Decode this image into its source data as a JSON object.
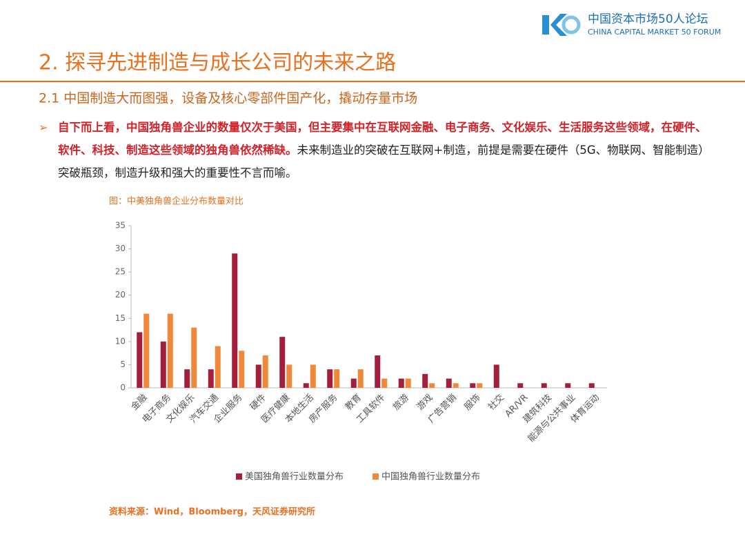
{
  "header": {
    "org_name": "中国资本市场50人论坛",
    "org_name_en": "CHINA CAPITAL MARKET 50 FORUM"
  },
  "title": "2. 探寻先进制造与成长公司的未来之路",
  "subtitle": "2.1 中国制造大而图强，设备及核心零部件国产化，撬动存量市场",
  "bullet": {
    "bold": "自下而上看，中国独角兽企业的数量仅次于美国，但主要集中在互联网金融、电子商务、文化娱乐、生活服务这些领域，在硬件、软件、科技、制造这些领域的独角兽依然稀缺。",
    "rest": "未来制造业的突破在互联网+制造，前提是需要在硬件（5G、物联网、智能制造）突破瓶颈，制造升级和强大的重要性不言而喻。"
  },
  "source": "资料来源：Wind，Bloomberg，天风证券研究所",
  "chart_data": {
    "type": "bar",
    "title": "图：中美独角兽企业分布数量对比",
    "categories": [
      "金融",
      "电子商务",
      "文化娱乐",
      "汽车交通",
      "企业服务",
      "硬件",
      "医疗健康",
      "本地生活",
      "房产服务",
      "教育",
      "工具软件",
      "旅游",
      "游戏",
      "广告营销",
      "服饰",
      "社交",
      "AR/VR",
      "建筑科技",
      "能源与公共事业",
      "体育运动"
    ],
    "series": [
      {
        "name": "美国独角兽行业数量分布",
        "color": "#a31f3c",
        "values": [
          12,
          10,
          4,
          4,
          29,
          5,
          11,
          1,
          4,
          2,
          7,
          2,
          3,
          2,
          1,
          5,
          1,
          1,
          1,
          1
        ]
      },
      {
        "name": "中国独角兽行业数量分布",
        "color": "#f0883a",
        "values": [
          16,
          16,
          13,
          9,
          8,
          7,
          5,
          5,
          4,
          4,
          2,
          2,
          1,
          1,
          1,
          0,
          0,
          0,
          0,
          0
        ]
      }
    ],
    "ylim": [
      0,
      35
    ],
    "yticks": [
      0,
      5,
      10,
      15,
      20,
      25,
      30,
      35
    ],
    "legend": "bottom"
  }
}
